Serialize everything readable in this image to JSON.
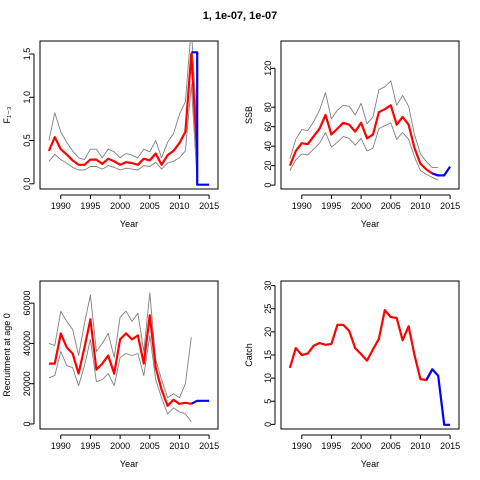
{
  "title": "1, 1e-07, 1e-07",
  "colors": {
    "estimate": "#ff0000",
    "bounds": "#808080",
    "projection": "#0000ff"
  },
  "chart_data": [
    {
      "type": "line",
      "xlabel": "Year",
      "ylabel": "F₁₋₃",
      "xlim": [
        1986.5,
        2016.5
      ],
      "ylim": [
        -0.06,
        1.65
      ],
      "xticks": [
        1990,
        1995,
        2000,
        2005,
        2010,
        2015
      ],
      "yticks": [
        0.0,
        0.5,
        1.0,
        1.5
      ],
      "yticklabels": [
        "0.0",
        "0.5",
        "1.0",
        "1.5"
      ],
      "x": [
        1988,
        1989,
        1990,
        1991,
        1992,
        1993,
        1994,
        1995,
        1996,
        1997,
        1998,
        1999,
        2000,
        2001,
        2002,
        2003,
        2004,
        2005,
        2006,
        2007,
        2008,
        2009,
        2010,
        2011,
        2012,
        2013
      ],
      "series": [
        {
          "role": "estimate",
          "values": [
            0.38,
            0.54,
            0.4,
            0.34,
            0.27,
            0.22,
            0.22,
            0.28,
            0.28,
            0.23,
            0.29,
            0.26,
            0.22,
            0.25,
            0.24,
            0.22,
            0.29,
            0.27,
            0.35,
            0.22,
            0.33,
            0.38,
            0.47,
            0.6,
            1.5,
            0.33
          ]
        },
        {
          "role": "upper",
          "values": [
            0.5,
            0.82,
            0.6,
            0.48,
            0.38,
            0.3,
            0.28,
            0.4,
            0.4,
            0.3,
            0.4,
            0.37,
            0.3,
            0.35,
            0.33,
            0.3,
            0.4,
            0.37,
            0.5,
            0.3,
            0.48,
            0.58,
            0.8,
            0.95,
            1.8,
            0.6
          ]
        },
        {
          "role": "lower",
          "values": [
            0.26,
            0.34,
            0.28,
            0.24,
            0.19,
            0.16,
            0.16,
            0.2,
            0.2,
            0.17,
            0.21,
            0.19,
            0.16,
            0.18,
            0.17,
            0.16,
            0.21,
            0.2,
            0.25,
            0.17,
            0.24,
            0.26,
            0.3,
            0.38,
            1.15,
            0.02
          ]
        },
        {
          "role": "projection",
          "x": [
            2012,
            2013,
            2013,
            2014,
            2015
          ],
          "values": [
            1.52,
            1.52,
            -0.01,
            -0.01,
            -0.01
          ]
        }
      ]
    },
    {
      "type": "line",
      "xlabel": "Year",
      "ylabel": "SSB",
      "xlim": [
        1986.5,
        2016.5
      ],
      "ylim": [
        -4,
        148
      ],
      "xticks": [
        1990,
        1995,
        2000,
        2005,
        2010,
        2015
      ],
      "yticks": [
        0,
        20,
        40,
        60,
        80,
        120
      ],
      "yticklabels": [
        "0",
        "20",
        "40",
        "60",
        "80",
        "120"
      ],
      "x": [
        1988,
        1989,
        1990,
        1991,
        1992,
        1993,
        1994,
        1995,
        1996,
        1997,
        1998,
        1999,
        2000,
        2001,
        2002,
        2003,
        2004,
        2005,
        2006,
        2007,
        2008,
        2009,
        2010,
        2011,
        2012,
        2013
      ],
      "series": [
        {
          "role": "estimate",
          "values": [
            20,
            35,
            43,
            42,
            50,
            58,
            72,
            52,
            58,
            64,
            62,
            55,
            64,
            48,
            52,
            75,
            78,
            82,
            62,
            70,
            62,
            38,
            22,
            16,
            12,
            10
          ]
        },
        {
          "role": "upper",
          "values": [
            27,
            47,
            57,
            56,
            65,
            77,
            95,
            68,
            77,
            82,
            81,
            72,
            84,
            63,
            70,
            98,
            101,
            107,
            82,
            92,
            81,
            52,
            32,
            24,
            18,
            18
          ]
        },
        {
          "role": "lower",
          "values": [
            15,
            26,
            32,
            31,
            37,
            43,
            54,
            39,
            44,
            50,
            48,
            41,
            48,
            35,
            38,
            58,
            61,
            64,
            47,
            54,
            47,
            29,
            15,
            11,
            8,
            5
          ]
        },
        {
          "role": "projection",
          "x": [
            2012,
            2013,
            2014,
            2015
          ],
          "values": [
            12,
            10,
            10,
            19
          ]
        }
      ]
    },
    {
      "type": "line",
      "xlabel": "Year",
      "ylabel": "Recruitment at age 0",
      "xlim": [
        1986.5,
        2016.5
      ],
      "ylim": [
        -2500,
        71000
      ],
      "xticks": [
        1990,
        1995,
        2000,
        2005,
        2010,
        2015
      ],
      "yticks": [
        0,
        20000,
        40000,
        60000
      ],
      "yticklabels": [
        "0",
        "20000",
        "40000",
        "60000"
      ],
      "x": [
        1988,
        1989,
        1990,
        1991,
        1992,
        1993,
        1994,
        1995,
        1996,
        1997,
        1998,
        1999,
        2000,
        2001,
        2002,
        2003,
        2004,
        2005,
        2006,
        2007,
        2008,
        2009,
        2010,
        2011,
        2012
      ],
      "series": [
        {
          "role": "estimate",
          "values": [
            30000,
            30000,
            45000,
            38000,
            35000,
            25000,
            38000,
            52000,
            27000,
            30000,
            34000,
            25000,
            42000,
            45000,
            42000,
            44000,
            30000,
            54000,
            28000,
            17000,
            9000,
            12000,
            10000,
            10500,
            10000
          ]
        },
        {
          "role": "upper",
          "values": [
            40000,
            39000,
            56000,
            51000,
            47000,
            34000,
            50000,
            64000,
            36000,
            40000,
            45000,
            33000,
            53000,
            56000,
            51000,
            55000,
            36000,
            65000,
            32000,
            22000,
            13000,
            15000,
            13000,
            20000,
            43000
          ]
        },
        {
          "role": "lower",
          "values": [
            23000,
            24000,
            36000,
            29000,
            28000,
            19000,
            29000,
            42000,
            21000,
            22000,
            25000,
            19000,
            33000,
            35000,
            34000,
            35000,
            24000,
            44000,
            22000,
            13000,
            5000,
            8000,
            6000,
            5000,
            1000
          ]
        },
        {
          "role": "projection",
          "x": [
            2012,
            2013,
            2014,
            2015
          ],
          "values": [
            10000,
            11500,
            11500,
            11500
          ]
        }
      ]
    },
    {
      "type": "line",
      "xlabel": "Year",
      "ylabel": "Catch",
      "xlim": [
        1986.5,
        2016.5
      ],
      "ylim": [
        -1,
        31
      ],
      "xticks": [
        1990,
        1995,
        2000,
        2005,
        2010,
        2015
      ],
      "yticks": [
        0,
        5,
        10,
        15,
        20,
        25,
        30
      ],
      "yticklabels": [
        "0",
        "5",
        "10",
        "15",
        "20",
        "25",
        "30"
      ],
      "x": [
        1988,
        1989,
        1990,
        1991,
        1992,
        1993,
        1994,
        1995,
        1996,
        1997,
        1998,
        1999,
        2000,
        2001,
        2002,
        2003,
        2004,
        2005,
        2006,
        2007,
        2008,
        2009,
        2010,
        2011,
        2012
      ],
      "series": [
        {
          "role": "estimate",
          "values": [
            12.2,
            16.5,
            15.0,
            15.3,
            17.0,
            17.6,
            17.2,
            17.4,
            21.5,
            21.5,
            20.2,
            16.5,
            15.2,
            13.8,
            16.2,
            18.5,
            24.7,
            23.2,
            23.0,
            18.2,
            21.2,
            15.0,
            9.8,
            9.6,
            11.9
          ]
        },
        {
          "role": "projection",
          "x": [
            2011,
            2012,
            2013,
            2014,
            2015
          ],
          "values": [
            9.6,
            11.9,
            10.5,
            -0.1,
            -0.1
          ]
        }
      ]
    }
  ]
}
